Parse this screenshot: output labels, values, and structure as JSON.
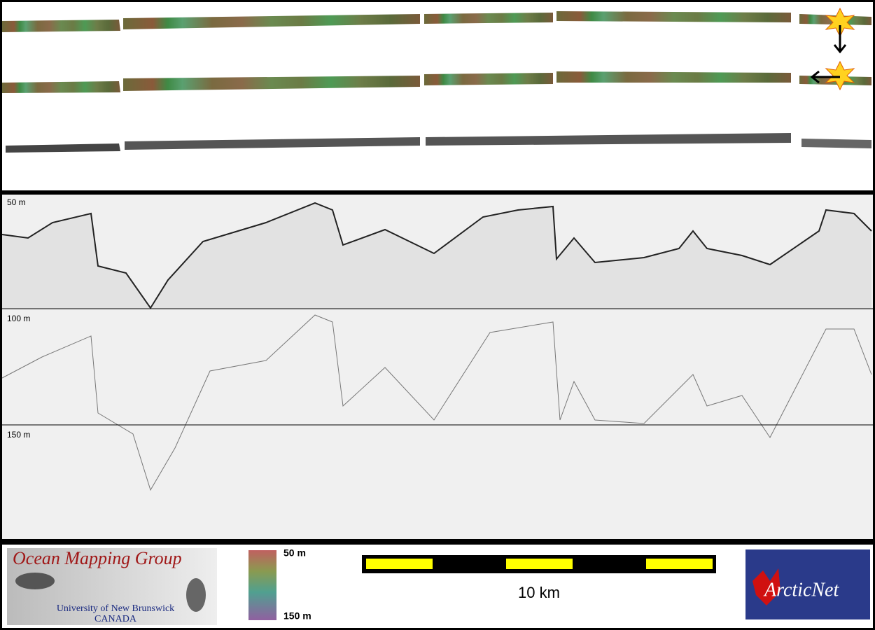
{
  "profile": {
    "depth_labels": [
      "50 m",
      "100 m",
      "150 m"
    ]
  },
  "footer": {
    "logo_title": "Ocean Mapping Group",
    "logo_subtitle": "University of New Brunswick",
    "logo_country": "CANADA",
    "colorbar_top": "50 m",
    "colorbar_bottom": "150 m",
    "scale_label": "10 km",
    "partner_logo": "ArcticNet"
  }
}
